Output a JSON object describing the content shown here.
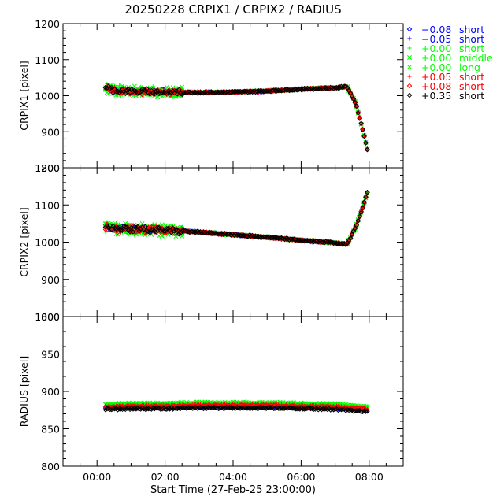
{
  "title": "20250228 CRPIX1 / CRPIX2 / RADIUS",
  "chart_data": {
    "type": "scatter",
    "xlabel": "Start Time (27-Feb-25 23:00:00)",
    "xticks": [
      "00:00",
      "02:00",
      "04:00",
      "06:00",
      "08:00"
    ],
    "xtick_hours": [
      0,
      2,
      4,
      6,
      8
    ],
    "xlim": [
      -1,
      9
    ],
    "panels": [
      {
        "id": "crpix1",
        "ylabel": "CRPIX1 [pixel]",
        "ylim": [
          800,
          1200
        ],
        "yticks": [
          800,
          900,
          1000,
          1100,
          1200
        ],
        "yticklabels": [
          "800",
          "900",
          "1000",
          "1100",
          "1200"
        ],
        "trend_x": [
          0.25,
          0.5,
          1,
          2,
          3,
          4,
          5,
          6,
          7,
          7.35,
          7.6,
          7.8,
          7.95
        ],
        "trend_y": [
          1022,
          1016,
          1012,
          1010,
          1009,
          1010,
          1013,
          1018,
          1022,
          1025,
          980,
          910,
          850
        ],
        "scatter_window": [
          0.25,
          2.5
        ],
        "scatter_amplitude": 14
      },
      {
        "id": "crpix2",
        "ylabel": "CRPIX2 [pixel]",
        "ylim": [
          800,
          1200
        ],
        "yticks": [
          800,
          900,
          1000,
          1100,
          1200
        ],
        "yticklabels": [
          "800",
          "900",
          "1000",
          "1100",
          "1200"
        ],
        "trend_x": [
          0.25,
          0.5,
          1,
          2,
          3,
          4,
          5,
          6,
          7,
          7.35,
          7.6,
          7.8,
          7.95
        ],
        "trend_y": [
          1040,
          1036,
          1035,
          1032,
          1027,
          1020,
          1013,
          1005,
          998,
          994,
          1040,
          1090,
          1135
        ],
        "scatter_window": [
          0.25,
          2.5
        ],
        "scatter_amplitude": 16
      },
      {
        "id": "radius",
        "ylabel": "RADIUS [pixel]",
        "ylim": [
          800,
          1000
        ],
        "yticks": [
          800,
          850,
          900,
          950,
          1000
        ],
        "yticklabels": [
          "800",
          "850",
          "900",
          "950",
          "1000"
        ],
        "trend_x": [
          0.25,
          1,
          2,
          3,
          4,
          5,
          6,
          7,
          7.95
        ],
        "trend_y": [
          879,
          880,
          880,
          881,
          881,
          881,
          880,
          879,
          876
        ],
        "scatter_window": [
          0,
          0
        ],
        "scatter_amplitude": 2
      }
    ],
    "series": [
      {
        "offset": "−0.08",
        "mode": "short",
        "marker": "diamond",
        "color": "#0000ff",
        "dy": -1
      },
      {
        "offset": "−0.05",
        "mode": "short",
        "marker": "plus",
        "color": "#0000ff",
        "dy": -1
      },
      {
        "offset": "+0.00",
        "mode": "short",
        "marker": "plus",
        "color": "#00ff00",
        "dy": 2
      },
      {
        "offset": "+0.00",
        "mode": "middle",
        "marker": "cross",
        "color": "#00ff00",
        "dy": 3
      },
      {
        "offset": "+0.00",
        "mode": "long",
        "marker": "cross",
        "color": "#00ff00",
        "dy": 4
      },
      {
        "offset": "+0.05",
        "mode": "short",
        "marker": "plus",
        "color": "#ff0000",
        "dy": 1
      },
      {
        "offset": "+0.08",
        "mode": "short",
        "marker": "diamond",
        "color": "#ff0000",
        "dy": 0
      },
      {
        "offset": "+0.35",
        "mode": "short",
        "marker": "diamond",
        "color": "#000000",
        "dy": -3
      }
    ]
  }
}
